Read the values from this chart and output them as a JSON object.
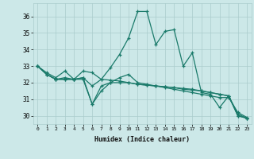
{
  "xlabel": "Humidex (Indice chaleur)",
  "bg_color": "#cce8e8",
  "grid_color": "#aacccc",
  "line_color": "#1a7a6a",
  "xlim": [
    -0.5,
    23.5
  ],
  "ylim": [
    29.5,
    36.8
  ],
  "yticks": [
    30,
    31,
    32,
    33,
    34,
    35,
    36
  ],
  "xticks": [
    0,
    1,
    2,
    3,
    4,
    5,
    6,
    7,
    8,
    9,
    10,
    11,
    12,
    13,
    14,
    15,
    16,
    17,
    18,
    19,
    20,
    21,
    22,
    23
  ],
  "series": [
    [
      33.0,
      32.6,
      32.3,
      32.7,
      32.2,
      32.3,
      30.7,
      31.8,
      32.0,
      32.0,
      32.0,
      31.9,
      31.85,
      31.8,
      31.75,
      31.7,
      31.6,
      31.55,
      31.5,
      31.4,
      31.3,
      31.2,
      30.0,
      29.85
    ],
    [
      33.0,
      32.5,
      32.2,
      32.3,
      32.2,
      32.7,
      32.6,
      32.2,
      32.9,
      33.7,
      34.7,
      36.3,
      36.3,
      34.3,
      35.1,
      35.2,
      33.0,
      33.8,
      31.4,
      31.3,
      30.5,
      31.2,
      30.0,
      29.85
    ],
    [
      33.0,
      32.5,
      32.2,
      32.2,
      32.2,
      32.2,
      30.7,
      31.5,
      32.0,
      32.3,
      32.5,
      32.0,
      31.9,
      31.8,
      31.7,
      31.6,
      31.5,
      31.4,
      31.3,
      31.2,
      31.1,
      31.1,
      30.2,
      29.9
    ],
    [
      33.0,
      32.5,
      32.2,
      32.2,
      32.2,
      32.3,
      31.8,
      32.2,
      32.15,
      32.1,
      32.0,
      31.9,
      31.85,
      31.8,
      31.75,
      31.7,
      31.65,
      31.6,
      31.5,
      31.4,
      31.3,
      31.2,
      30.1,
      29.85
    ]
  ]
}
